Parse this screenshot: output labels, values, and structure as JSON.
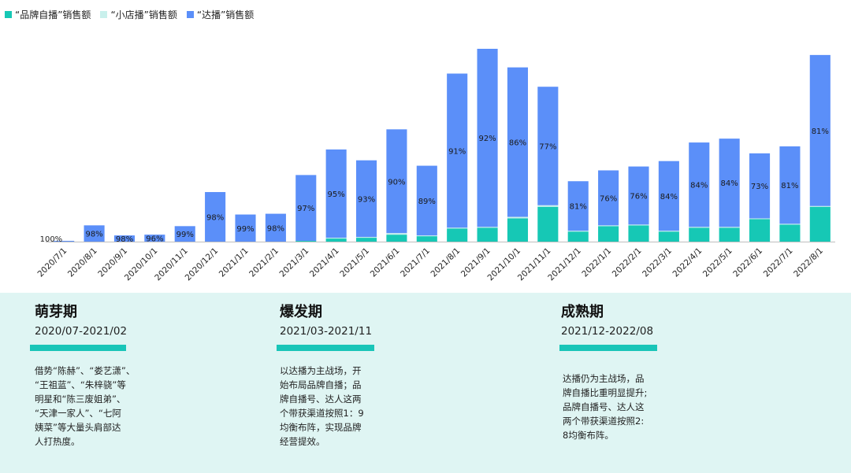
{
  "colors": {
    "brand_self": "#16c8b5",
    "small_shop": "#c9f0ec",
    "influencer": "#5b8ff9",
    "panel_bg": "#dff5f3",
    "phase_bar": "#19c5b8"
  },
  "legend": {
    "brand_self": "“品牌自播”销售额",
    "small_shop": "“小店播”销售额",
    "influencer": "“达播”销售额"
  },
  "chart_data": {
    "type": "bar",
    "stacked": true,
    "categories": [
      "2020/7/1",
      "2020/8/1",
      "2020/9/1",
      "2020/10/1",
      "2020/11/1",
      "2020/12/1",
      "2021/1/1",
      "2021/2/1",
      "2021/3/1",
      "2021/4/1",
      "2021/5/1",
      "2021/6/1",
      "2021/7/1",
      "2021/8/1",
      "2021/9/1",
      "2021/10/1",
      "2021/11/1",
      "2021/12/1",
      "2022/1/1",
      "2022/2/1",
      "2022/3/1",
      "2022/4/1",
      "2022/5/1",
      "2022/6/1",
      "2022/7/1",
      "2022/8/1"
    ],
    "series": [
      {
        "name": "“品牌自播”销售额",
        "values": [
          0,
          0,
          0,
          0,
          0,
          0,
          0,
          0,
          1,
          4,
          5,
          9,
          7,
          17,
          18,
          30,
          45,
          13,
          20,
          21,
          13,
          18,
          18,
          29,
          22,
          45
        ]
      },
      {
        "name": "“小店播”销售额",
        "values": [
          0,
          0,
          0,
          0,
          0,
          0,
          0,
          0,
          0,
          1,
          1,
          2,
          1,
          1,
          1,
          2,
          2,
          1,
          1,
          1,
          1,
          1,
          1,
          1,
          1,
          1
        ]
      },
      {
        "name": "“达播”销售额",
        "values": [
          1,
          21,
          8,
          9,
          20,
          64,
          35,
          36,
          85,
          114,
          99,
          134,
          90,
          199,
          230,
          193,
          153,
          64,
          71,
          75,
          90,
          109,
          114,
          84,
          100,
          195
        ]
      }
    ],
    "data_labels": [
      "100%",
      "98%",
      "98%",
      "96%",
      "99%",
      "98%",
      "99%",
      "98%",
      "97%",
      "95%",
      "93%",
      "90%",
      "89%",
      "91%",
      "92%",
      "86%",
      "77%",
      "81%",
      "76%",
      "76%",
      "84%",
      "84%",
      "84%",
      "73%",
      "81%",
      "81%"
    ],
    "xlabel": "",
    "ylabel": "",
    "grid": false,
    "legend_position": "top-left"
  },
  "phases": [
    {
      "title": "萌芽期",
      "dates": "2020/07-2021/02",
      "desc": [
        "借势“陈赫”、“娄艺潇”、",
        "“王祖蓝”、“朱梓骁”等",
        "明星和“陈三废姐弟”、",
        "“天津一家人”、“七阿",
        "姨菜”等大量头肩部达",
        "人打热度。"
      ]
    },
    {
      "title": "爆发期",
      "dates": "2021/03-2021/11",
      "desc": [
        "以达播为主战场，开",
        "始布局品牌自播；品",
        "牌自播号、达人这两",
        "个带获渠道按照1：9",
        "均衡布阵，实现品牌",
        "经营提效。"
      ]
    },
    {
      "title": "成熟期",
      "dates": "2021/12-2022/08",
      "desc": [
        "达播仍为主战场，品",
        "牌自播比重明显提升;",
        "品牌自播号、达人这",
        "两个带获渠道按照2:",
        "8均衡布阵。"
      ]
    }
  ]
}
